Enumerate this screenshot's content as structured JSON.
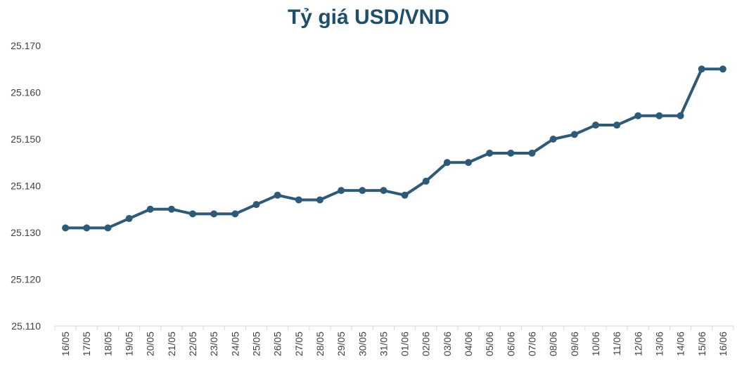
{
  "chart_data": {
    "type": "line",
    "title": "Tỷ giá USD/VND",
    "xlabel": "",
    "ylabel": "",
    "ylim": [
      25110,
      25170
    ],
    "yticks": [
      25110,
      25120,
      25130,
      25140,
      25150,
      25160,
      25170
    ],
    "ytick_labels": [
      "25.110",
      "25.120",
      "25.130",
      "25.140",
      "25.150",
      "25.160",
      "25.170"
    ],
    "categories": [
      "16/05",
      "17/05",
      "18/05",
      "19/05",
      "20/05",
      "21/05",
      "22/05",
      "23/05",
      "24/05",
      "25/05",
      "26/05",
      "27/05",
      "28/05",
      "29/05",
      "30/05",
      "31/05",
      "01/06",
      "02/06",
      "03/06",
      "04/06",
      "05/06",
      "06/06",
      "07/06",
      "08/06",
      "09/06",
      "10/06",
      "11/06",
      "12/06",
      "13/06",
      "14/06",
      "15/06",
      "16/06"
    ],
    "values": [
      25131,
      25131,
      25131,
      25133,
      25135,
      25135,
      25134,
      25134,
      25134,
      25136,
      25138,
      25137,
      25137,
      25139,
      25139,
      25139,
      25138,
      25141,
      25145,
      25145,
      25147,
      25147,
      25147,
      25150,
      25151,
      25153,
      25153,
      25155,
      25155,
      25155,
      25165,
      25165
    ],
    "grid": false,
    "legend": "none",
    "line_color": "#2e5a78",
    "title_color": "#1f4e6b"
  }
}
